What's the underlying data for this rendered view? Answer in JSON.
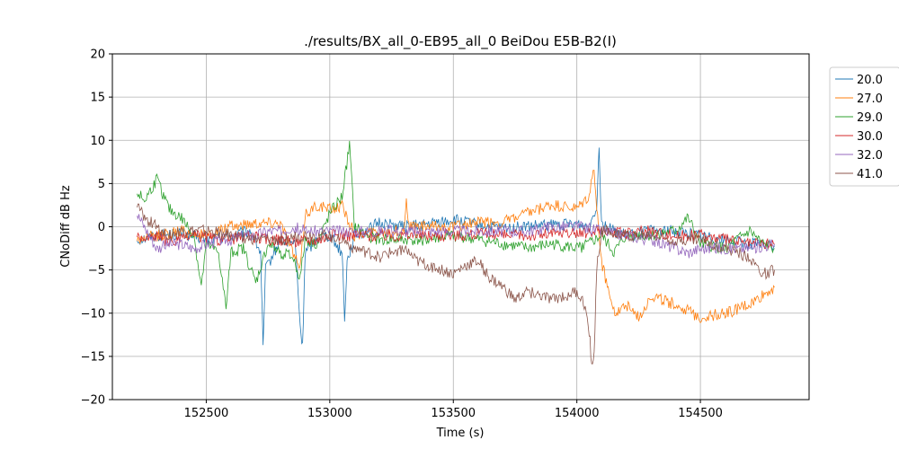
{
  "chart_data": {
    "type": "line",
    "title": "./results/BX_all_0-EB95_all_0 BeiDou E5B-B2(I)",
    "xlabel": "Time (s)",
    "ylabel": "CNoDiff dB Hz",
    "xlim": [
      152120,
      154940
    ],
    "ylim": [
      -20,
      20
    ],
    "x_ticks": [
      152500,
      153000,
      153500,
      154000,
      154500
    ],
    "y_ticks": [
      -20,
      -15,
      -10,
      -5,
      0,
      5,
      10,
      15,
      20
    ],
    "grid": true,
    "legend_placement": "outside-top-right",
    "series": [
      {
        "name": "20.0",
        "color": "#1f77b4",
        "x": [
          152220,
          152300,
          152400,
          152500,
          152600,
          152680,
          152720,
          152730,
          152740,
          152800,
          152860,
          152880,
          152890,
          152900,
          152960,
          153000,
          153050,
          153060,
          153070,
          153100,
          153150,
          153200,
          153300,
          153400,
          153500,
          153600,
          153700,
          153800,
          153900,
          154000,
          154050,
          154080,
          154090,
          154100,
          154150,
          154200,
          154300,
          154400,
          154500,
          154600,
          154700,
          154800
        ],
        "y": [
          -1.5,
          -1.0,
          -0.8,
          -1.5,
          -1.0,
          -0.5,
          -3.0,
          -14.0,
          -5.0,
          -1.5,
          -2.0,
          -11.5,
          -14.0,
          -3.0,
          -1.0,
          -1.0,
          -3.0,
          -10.5,
          -4.0,
          -1.0,
          -0.5,
          0.5,
          0.0,
          0.3,
          0.8,
          0.2,
          -0.2,
          0.0,
          0.2,
          0.3,
          0.0,
          2.5,
          9.3,
          0.5,
          -0.5,
          -1.0,
          -0.5,
          -0.5,
          -1.0,
          -1.5,
          -2.0,
          -2.2
        ]
      },
      {
        "name": "27.0",
        "color": "#ff7f0e",
        "x": [
          152220,
          152300,
          152400,
          152500,
          152600,
          152700,
          152800,
          152880,
          152900,
          152950,
          153000,
          153050,
          153100,
          153200,
          153300,
          153310,
          153320,
          153400,
          153500,
          153600,
          153700,
          153800,
          153900,
          154000,
          154050,
          154070,
          154080,
          154100,
          154150,
          154200,
          154250,
          154300,
          154400,
          154500,
          154600,
          154700,
          154750,
          154800
        ],
        "y": [
          -1.5,
          -1.0,
          -0.5,
          -1.0,
          0.0,
          0.5,
          0.5,
          -5.0,
          1.5,
          2.5,
          2.0,
          2.5,
          -1.0,
          -0.5,
          -0.5,
          3.5,
          0.0,
          0.0,
          0.0,
          0.5,
          0.5,
          1.5,
          2.5,
          2.0,
          3.5,
          7.0,
          2.0,
          -4.0,
          -10.0,
          -9.0,
          -10.5,
          -8.0,
          -9.0,
          -10.5,
          -10.0,
          -9.0,
          -8.0,
          -7.0
        ]
      },
      {
        "name": "29.0",
        "color": "#2ca02c",
        "x": [
          152220,
          152250,
          152300,
          152350,
          152400,
          152450,
          152480,
          152500,
          152550,
          152580,
          152600,
          152650,
          152700,
          152750,
          152800,
          152850,
          152880,
          152900,
          152950,
          153000,
          153050,
          153080,
          153100,
          153150,
          153200,
          153300,
          153400,
          153500,
          153600,
          153700,
          153800,
          153900,
          154000,
          154050,
          154100,
          154150,
          154200,
          154300,
          154400,
          154450,
          154500,
          154600,
          154650,
          154700,
          154750,
          154800
        ],
        "y": [
          4.0,
          3.0,
          5.5,
          2.0,
          1.0,
          -1.0,
          -7.0,
          -2.0,
          -3.0,
          -9.5,
          -3.0,
          -2.5,
          -6.5,
          -2.0,
          -3.0,
          -3.5,
          -6.0,
          -1.5,
          -2.0,
          1.5,
          3.5,
          9.5,
          0.0,
          -1.0,
          -1.5,
          -1.5,
          -1.5,
          -1.0,
          -1.5,
          -2.0,
          -2.5,
          -2.0,
          -2.5,
          -2.0,
          -1.0,
          -3.0,
          -1.0,
          -1.0,
          -0.5,
          1.0,
          -2.0,
          -2.5,
          -1.5,
          -0.5,
          -2.0,
          -2.5
        ]
      },
      {
        "name": "30.0",
        "color": "#d62728",
        "x": [
          152220,
          152250,
          152300,
          152350,
          152400,
          152450,
          152500,
          152550,
          152600,
          152650,
          152700,
          152750,
          152800,
          152850,
          152900,
          152950,
          153000,
          153100,
          153200,
          153300,
          153400,
          153500,
          153600,
          153700,
          153800,
          153900,
          154000,
          154100,
          154200,
          154300,
          154400,
          154500,
          154600,
          154700,
          154800
        ],
        "y": [
          -1.0,
          -1.5,
          -1.0,
          -1.8,
          -1.5,
          -1.0,
          -1.2,
          -1.5,
          -1.5,
          -1.0,
          -1.2,
          -1.5,
          -1.5,
          -1.8,
          -1.5,
          -1.5,
          -1.0,
          -1.0,
          -1.0,
          -1.0,
          -1.0,
          -1.0,
          -0.8,
          -1.0,
          -1.0,
          -0.8,
          -0.8,
          -0.5,
          -0.8,
          -0.5,
          -1.0,
          -1.0,
          -1.5,
          -2.0,
          -2.0
        ]
      },
      {
        "name": "32.0",
        "color": "#9467bd",
        "x": [
          152220,
          152250,
          152300,
          152350,
          152400,
          152450,
          152500,
          152550,
          152600,
          152650,
          152700,
          152750,
          152800,
          152850,
          152900,
          153000,
          153100,
          153200,
          153300,
          153400,
          153500,
          153600,
          153700,
          153800,
          153900,
          154000,
          154100,
          154200,
          154300,
          154400,
          154450,
          154500,
          154600,
          154700,
          154800
        ],
        "y": [
          1.5,
          0.0,
          -2.5,
          -2.0,
          -2.0,
          -2.5,
          -2.0,
          -1.5,
          -1.5,
          -1.0,
          -1.0,
          -0.5,
          -0.5,
          0.0,
          -0.5,
          -0.5,
          -0.5,
          -0.5,
          -0.5,
          -0.5,
          -0.5,
          -0.5,
          -0.5,
          -0.5,
          0.0,
          0.0,
          -0.5,
          -1.0,
          -1.5,
          -2.5,
          -3.0,
          -2.5,
          -2.5,
          -2.5,
          -2.0
        ]
      },
      {
        "name": "41.0",
        "color": "#8c564b",
        "x": [
          152220,
          152250,
          152300,
          152350,
          152400,
          152500,
          152600,
          152700,
          152800,
          152900,
          153000,
          153050,
          153100,
          153150,
          153200,
          153250,
          153300,
          153350,
          153400,
          153450,
          153500,
          153550,
          153600,
          153650,
          153700,
          153750,
          153800,
          153850,
          153900,
          153950,
          154000,
          154030,
          154050,
          154060,
          154070,
          154080,
          154100,
          154150,
          154200,
          154300,
          154400,
          154500,
          154600,
          154700,
          154750,
          154800
        ],
        "y": [
          2.5,
          1.0,
          0.0,
          -1.0,
          -0.5,
          -0.5,
          -1.0,
          -1.5,
          -1.5,
          -1.0,
          -1.0,
          -1.5,
          -2.5,
          -3.0,
          -3.5,
          -3.0,
          -2.5,
          -4.0,
          -4.5,
          -5.0,
          -5.5,
          -4.5,
          -4.0,
          -6.0,
          -7.0,
          -8.5,
          -7.5,
          -8.0,
          -8.5,
          -8.0,
          -7.5,
          -9.0,
          -12.0,
          -16.0,
          -15.0,
          -5.0,
          -0.5,
          -0.5,
          -1.0,
          -1.0,
          -1.5,
          -1.5,
          -2.5,
          -3.5,
          -5.5,
          -5.0
        ]
      }
    ]
  }
}
